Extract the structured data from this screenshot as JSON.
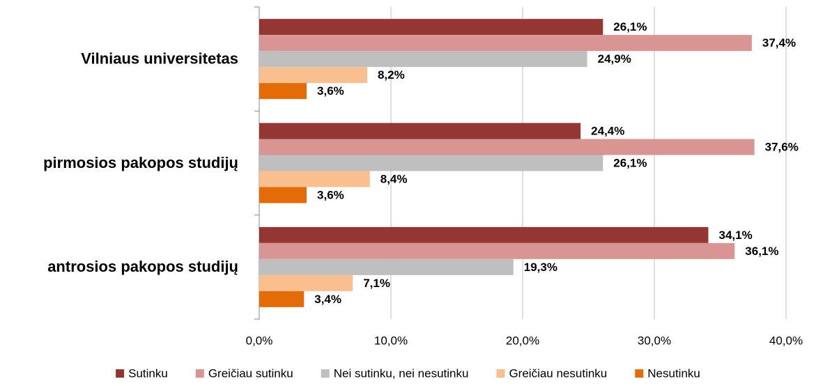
{
  "chart_data": {
    "type": "bar",
    "orientation": "horizontal",
    "categories": [
      "Vilniaus universitetas",
      "pirmosios pakopos studijų",
      "antrosios pakopos studijų"
    ],
    "series": [
      {
        "name": "Sutinku",
        "color": "#943634",
        "values": [
          26.1,
          24.4,
          34.1
        ],
        "value_labels": [
          "26,1%",
          "24,4%",
          "34,1%"
        ]
      },
      {
        "name": "Greičiau sutinku",
        "color": "#d99594",
        "values": [
          37.4,
          37.6,
          36.1
        ],
        "value_labels": [
          "37,4%",
          "37,6%",
          "36,1%"
        ]
      },
      {
        "name": "Nei sutinku, nei nesutinku",
        "color": "#bfbfbf",
        "values": [
          24.9,
          26.1,
          19.3
        ],
        "value_labels": [
          "24,9%",
          "26,1%",
          "19,3%"
        ]
      },
      {
        "name": "Greičiau nesutinku",
        "color": "#fabf8f",
        "values": [
          8.2,
          8.4,
          7.1
        ],
        "value_labels": [
          "8,2%",
          "8,4%",
          "7,1%"
        ]
      },
      {
        "name": "Nesutinku",
        "color": "#e36c09",
        "values": [
          3.6,
          3.6,
          3.4
        ],
        "value_labels": [
          "3,6%",
          "3,6%",
          "3,4%"
        ]
      }
    ],
    "xlim": [
      0,
      40
    ],
    "xticks": [
      {
        "value": 0,
        "label": "0,0%"
      },
      {
        "value": 10,
        "label": "10,0%"
      },
      {
        "value": 20,
        "label": "20,0%"
      },
      {
        "value": 30,
        "label": "30,0%"
      },
      {
        "value": 40,
        "label": "40,0%"
      }
    ],
    "grid": true,
    "legend": "bottom"
  }
}
